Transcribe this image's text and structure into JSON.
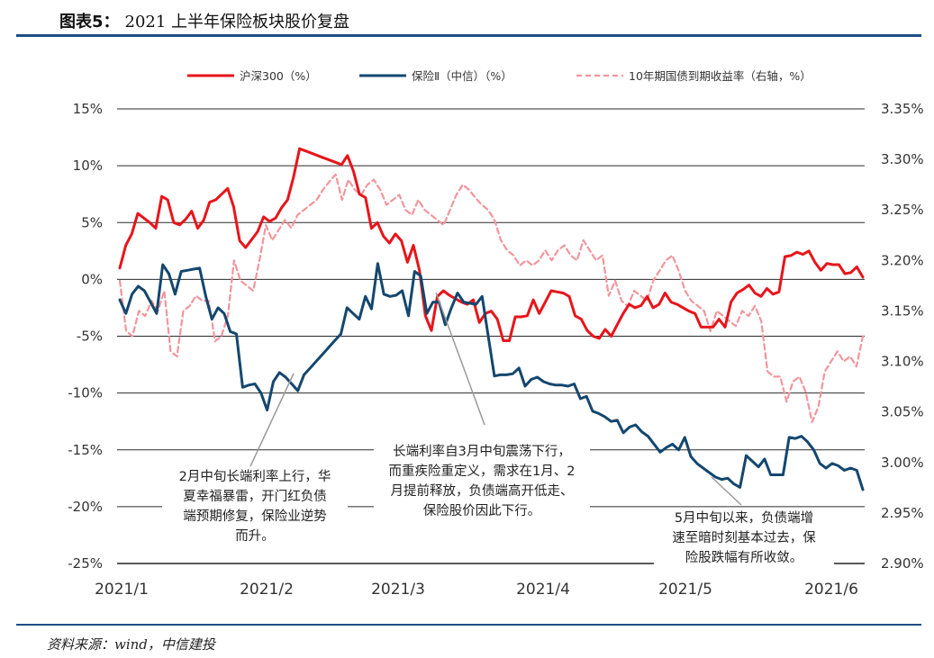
{
  "header": {
    "label": "图表5：",
    "title": "2021 上半年保险板块股价复盘"
  },
  "source": "资料来源：wind，中信建投",
  "chart_data": {
    "type": "line",
    "title": "2021 上半年保险板块股价复盘",
    "x_ticks": [
      "2021/1",
      "2021/2",
      "2021/3",
      "2021/4",
      "2021/5",
      "2021/6"
    ],
    "x_tick_positions": [
      0,
      23,
      44,
      67,
      89,
      111
    ],
    "x_range": [
      0,
      116
    ],
    "y_left": {
      "range": [
        -25,
        15
      ],
      "ticks": [
        15,
        10,
        5,
        0,
        -5,
        -10,
        -15,
        -20,
        -25
      ],
      "tick_labels": [
        "15%",
        "10%",
        "5%",
        "0%",
        "-5%",
        "-10%",
        "-15%",
        "-20%",
        "-25%"
      ],
      "grid": true
    },
    "y_right": {
      "range": [
        2.9,
        3.35
      ],
      "ticks": [
        3.35,
        3.3,
        3.25,
        3.2,
        3.15,
        3.1,
        3.05,
        3.0,
        2.95,
        2.9
      ],
      "tick_labels": [
        "3.35%",
        "3.30%",
        "3.25%",
        "3.20%",
        "3.15%",
        "3.10%",
        "3.05%",
        "3.00%",
        "2.95%",
        "2.90%"
      ]
    },
    "legend_position": "top",
    "series": [
      {
        "name": "沪深300（%）",
        "axis": "left",
        "color": "#e8141a",
        "style": "solid",
        "values": [
          1.0,
          3.0,
          4.0,
          5.8,
          5.4,
          5.0,
          4.5,
          7.3,
          7.0,
          5.0,
          4.8,
          5.3,
          6.0,
          4.5,
          5.2,
          6.8,
          7.0,
          7.5,
          8.0,
          6.4,
          3.4,
          2.8,
          3.5,
          4.2,
          5.5,
          5.1,
          5.4,
          6.3,
          7.0,
          9.0,
          11.5,
          11.3,
          11.1,
          10.9,
          10.7,
          10.5,
          10.3,
          10.1,
          10.9,
          9.5,
          7.5,
          7.2,
          4.5,
          5.0,
          3.8,
          3.2,
          4.0,
          3.4,
          1.5,
          3.0,
          0.8,
          -3.2,
          -4.5,
          -1.5,
          -1.0,
          -1.4,
          -1.7,
          -2.0,
          -2.2,
          -1.8,
          -3.8,
          -3.0,
          -2.8,
          -3.5,
          -5.4,
          -5.4,
          -3.3,
          -3.3,
          -3.2,
          -1.8,
          -3.0,
          -2.0,
          -1.0,
          -1.1,
          -1.2,
          -1.5,
          -3.2,
          -3.5,
          -4.5,
          -5.0,
          -5.2,
          -4.4,
          -5.0,
          -4.0,
          -3.0,
          -2.2,
          -2.5,
          -2.3,
          -1.5,
          -2.5,
          -2.2,
          -1.2,
          -2.0,
          -2.2,
          -2.5,
          -2.8,
          -3.0,
          -4.2,
          -4.2,
          -4.2,
          -3.5,
          -4.2,
          -2.0,
          -1.2,
          -0.9,
          -0.5,
          -1.2,
          -1.5,
          -0.8,
          -1.3,
          -1.1,
          2.0,
          2.1,
          2.4,
          2.2,
          2.5
        ],
        "tail_values": [
          1.5,
          0.8,
          1.4,
          1.3,
          1.3,
          0.5,
          0.6,
          1.1,
          0.2
        ]
      },
      {
        "name": "保险Ⅱ（中信）（%）",
        "axis": "left",
        "color": "#14476f",
        "style": "solid",
        "values": [
          -1.8,
          -3.0,
          -1.3,
          -0.6,
          -1.0,
          -2.0,
          -3.0,
          1.3,
          0.5,
          -1.3,
          0.7,
          0.8,
          0.9,
          1.0,
          -1.5,
          -3.5,
          -2.5,
          -3.0,
          -4.6,
          -4.8,
          -9.5,
          -9.3,
          -9.2,
          -10.0,
          -11.5,
          -9.0,
          -8.2,
          -8.6,
          -9.2,
          -9.8,
          -8.4,
          -7.8,
          -7.2,
          -6.6,
          -6.0,
          -5.4,
          -4.8,
          -2.5,
          -3.0,
          -3.5,
          -1.5,
          -2.6,
          1.4,
          -1.3,
          -1.5,
          -1.4,
          -1.0,
          -3.2,
          0.7,
          0.3,
          -3.0,
          -2.0,
          -2.0,
          -4.0,
          -2.5,
          -1.2,
          -2.0,
          -2.1,
          -2.2,
          -1.5,
          -5.0,
          -8.5,
          -8.4,
          -8.4,
          -8.3,
          -7.8,
          -9.4,
          -8.8,
          -8.6,
          -9.0,
          -9.2,
          -9.3,
          -9.3,
          -9.4,
          -9.2,
          -10.5,
          -10.3,
          -11.6,
          -11.8,
          -12.1,
          -12.5,
          -12.4,
          -13.5,
          -13.0,
          -12.8,
          -13.4,
          -13.8,
          -14.5,
          -15.2,
          -14.8,
          -14.5,
          -15.0,
          -13.9,
          -15.6,
          -16.2,
          -16.6,
          -17.0,
          -17.4,
          -17.6,
          -17.5,
          -18.0,
          -18.3,
          -15.5,
          -16.0,
          -16.5,
          -15.8,
          -17.2,
          -17.2,
          -17.2,
          -13.9,
          -14.0,
          -13.8,
          -14.3,
          -15.0
        ],
        "tail_values": [
          -16.2,
          -16.6,
          -16.2,
          -16.4,
          -16.8,
          -16.6,
          -16.8,
          -18.5
        ]
      },
      {
        "name": "10年期国债到期收益率（右轴，%）",
        "axis": "right",
        "color": "#f2959c",
        "style": "dashed",
        "values": [
          3.18,
          3.13,
          3.125,
          3.15,
          3.145,
          3.16,
          3.15,
          3.17,
          3.11,
          3.105,
          3.15,
          3.155,
          3.165,
          3.16,
          3.16,
          3.12,
          3.125,
          3.145,
          3.2,
          3.18,
          3.175,
          3.17,
          3.2,
          3.235,
          3.22,
          3.23,
          3.24,
          3.232,
          3.245,
          3.25,
          3.255,
          3.26,
          3.27,
          3.278,
          3.285,
          3.26,
          3.28,
          3.27,
          3.265,
          3.275,
          3.28,
          3.27,
          3.255,
          3.26,
          3.265,
          3.25,
          3.245,
          3.26,
          3.25,
          3.245,
          3.24,
          3.235,
          3.25,
          3.265,
          3.275,
          3.27,
          3.262,
          3.255,
          3.25,
          3.24,
          3.22,
          3.21,
          3.205,
          3.195,
          3.2,
          3.195,
          3.2,
          3.21,
          3.2,
          3.21,
          3.215,
          3.205,
          3.2,
          3.22,
          3.21,
          3.2,
          3.205,
          3.165,
          3.18,
          3.16,
          3.155,
          3.17,
          3.165,
          3.16,
          3.18,
          3.19,
          3.2,
          3.205,
          3.19,
          3.17,
          3.16,
          3.155,
          3.15,
          3.13,
          3.15,
          3.145,
          3.14,
          3.135,
          3.15,
          3.145,
          3.155,
          3.14,
          3.09,
          3.085,
          3.085,
          3.06,
          3.08,
          3.085,
          3.07,
          3.04,
          3.055,
          3.09,
          3.1,
          3.11,
          3.1
        ],
        "tail_values": [
          3.105,
          3.095,
          3.125
        ]
      }
    ],
    "annotations": [
      "2月中旬长端利率上行，华夏幸福暴雷，开门红负债端预期修复，保险业逆势而升。",
      "长端利率自3月中旬震荡下行，而重疾险重定义，需求在1月、2月提前释放，负债端高开低走、保险股价因此下行。",
      "5月中旬以来，负债端增速至暗时刻基本过去，保险股跌幅有所收敛。"
    ]
  },
  "annotations_text": {
    "a1": [
      "2月中旬长端利率上行，华",
      "夏幸福暴雷，开门红负债",
      "端预期修复，保险业逆势",
      "而升。"
    ],
    "a2": [
      "长端利率自3月中旬震荡下行，",
      "而重疾险重定义，需求在1月、2",
      "月提前释放，负债端高开低走、",
      "保险股价因此下行。"
    ],
    "a3": [
      "5月中旬以来，负债端增",
      "速至暗时刻基本过去，保",
      "险股跌幅有所收敛。"
    ]
  }
}
